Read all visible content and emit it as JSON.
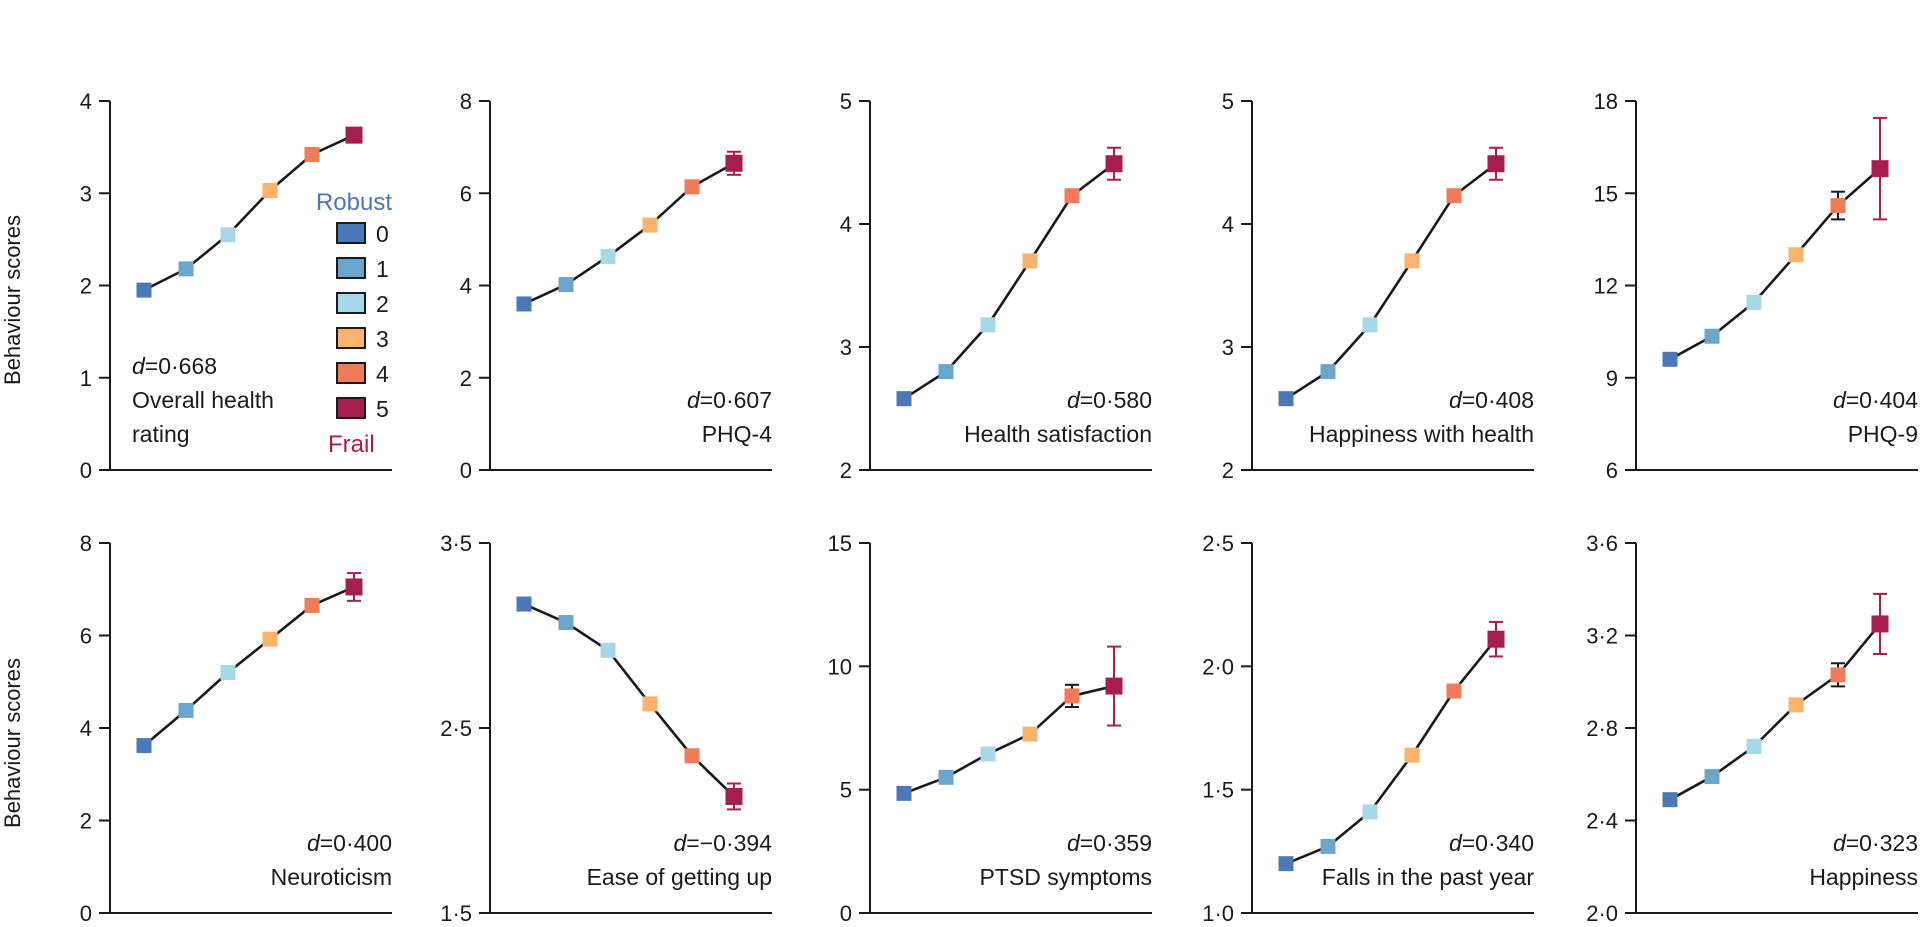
{
  "colors": {
    "levels": [
      "#4a78b8",
      "#6aa5cd",
      "#a7d8ea",
      "#f9b36c",
      "#ef7b58",
      "#a61e4d"
    ],
    "line": "#1a1a1a",
    "robust_label": "#4a78b8",
    "frail_label": "#a61e4d"
  },
  "shared": {
    "ylabel": "Behaviour scores"
  },
  "legend": {
    "title": "Robust",
    "items": [
      "0",
      "1",
      "2",
      "3",
      "4",
      "5"
    ],
    "footer": "Frail"
  },
  "chart_data": [
    {
      "type": "line",
      "title": "Overall health rating",
      "title_lines": [
        "Overall health",
        "rating"
      ],
      "d_label": "=0·668",
      "ylim": [
        0,
        4
      ],
      "yticks": [
        "0",
        "1",
        "2",
        "3",
        "4"
      ],
      "x": [
        0,
        1,
        2,
        3,
        4,
        5
      ],
      "values": [
        1.95,
        2.18,
        2.55,
        3.03,
        3.42,
        3.63
      ],
      "errors": [
        0,
        0,
        0,
        0,
        0,
        0
      ],
      "label_align": "left"
    },
    {
      "type": "line",
      "title": "PHQ-4",
      "title_lines": [
        "PHQ-4"
      ],
      "d_label": "=0·607",
      "ylim": [
        0,
        8
      ],
      "yticks": [
        "0",
        "2",
        "4",
        "6",
        "8"
      ],
      "x": [
        0,
        1,
        2,
        3,
        4,
        5
      ],
      "values": [
        3.6,
        4.02,
        4.63,
        5.31,
        6.14,
        6.65
      ],
      "errors": [
        0,
        0,
        0,
        0,
        0,
        0.25
      ],
      "label_align": "right"
    },
    {
      "type": "line",
      "title": "Health satisfaction",
      "title_lines": [
        "Health satisfaction"
      ],
      "d_label": "=0·580",
      "ylim": [
        2,
        5
      ],
      "yticks": [
        "2",
        "3",
        "4",
        "5"
      ],
      "x": [
        0,
        1,
        2,
        3,
        4,
        5
      ],
      "values": [
        2.58,
        2.8,
        3.18,
        3.7,
        4.23,
        4.49
      ],
      "errors": [
        0,
        0,
        0,
        0,
        0.04,
        0.13
      ],
      "label_align": "right"
    },
    {
      "type": "line",
      "title": "Happiness with health",
      "title_lines": [
        "Happiness with health"
      ],
      "d_label": "=0·408",
      "ylim": [
        2,
        5
      ],
      "yticks": [
        "2",
        "3",
        "4",
        "5"
      ],
      "x": [
        0,
        1,
        2,
        3,
        4,
        5
      ],
      "values": [
        2.58,
        2.8,
        3.18,
        3.7,
        4.23,
        4.49
      ],
      "errors": [
        0,
        0,
        0,
        0,
        0.04,
        0.13
      ],
      "label_align": "right"
    },
    {
      "type": "line",
      "title": "PHQ-9",
      "title_lines": [
        "PHQ-9"
      ],
      "d_label": "=0·404",
      "ylim": [
        6,
        18
      ],
      "yticks": [
        "6",
        "9",
        "12",
        "15",
        "18"
      ],
      "x": [
        0,
        1,
        2,
        3,
        4,
        5
      ],
      "values": [
        9.6,
        10.35,
        11.45,
        13.0,
        14.6,
        15.8
      ],
      "errors": [
        0,
        0,
        0,
        0,
        0.45,
        1.65
      ],
      "label_align": "right"
    },
    {
      "type": "line",
      "title": "Neuroticism",
      "title_lines": [
        "Neuroticism"
      ],
      "d_label": "=0·400",
      "ylim": [
        0,
        8
      ],
      "yticks": [
        "0",
        "2",
        "4",
        "6",
        "8"
      ],
      "x": [
        0,
        1,
        2,
        3,
        4,
        5
      ],
      "values": [
        3.62,
        4.38,
        5.2,
        5.92,
        6.65,
        7.05
      ],
      "errors": [
        0,
        0,
        0,
        0,
        0,
        0.3
      ],
      "label_align": "right"
    },
    {
      "type": "line",
      "title": "Ease of getting up",
      "title_lines": [
        "Ease of getting up"
      ],
      "d_label": "=−0·394",
      "ylim": [
        1.5,
        3.5
      ],
      "yticks": [
        "1·5",
        "2·5",
        "3·5"
      ],
      "x": [
        0,
        1,
        2,
        3,
        4,
        5
      ],
      "values": [
        3.17,
        3.07,
        2.92,
        2.63,
        2.35,
        2.13
      ],
      "errors": [
        0,
        0,
        0,
        0,
        0,
        0.07
      ],
      "label_align": "right"
    },
    {
      "type": "line",
      "title": "PTSD symptoms",
      "title_lines": [
        "PTSD symptoms"
      ],
      "d_label": "=0·359",
      "ylim": [
        0,
        15
      ],
      "yticks": [
        "0",
        "5",
        "10",
        "15"
      ],
      "x": [
        0,
        1,
        2,
        3,
        4,
        5
      ],
      "values": [
        4.85,
        5.5,
        6.45,
        7.25,
        8.8,
        9.2
      ],
      "errors": [
        0,
        0,
        0,
        0,
        0.45,
        1.6
      ],
      "label_align": "right"
    },
    {
      "type": "line",
      "title": "Falls in the past year",
      "title_lines": [
        "Falls in the past year"
      ],
      "d_label": "=0·340",
      "ylim": [
        1.0,
        2.5
      ],
      "yticks": [
        "1·0",
        "1·5",
        "2·0",
        "2·5"
      ],
      "x": [
        0,
        1,
        2,
        3,
        4,
        5
      ],
      "values": [
        1.2,
        1.27,
        1.41,
        1.64,
        1.9,
        2.11
      ],
      "errors": [
        0,
        0,
        0,
        0,
        0,
        0.07
      ],
      "label_align": "right"
    },
    {
      "type": "line",
      "title": "Happiness",
      "title_lines": [
        "Happiness"
      ],
      "d_label": "=0·323",
      "ylim": [
        2.0,
        3.6
      ],
      "yticks": [
        "2·0",
        "2·4",
        "2·8",
        "3·2",
        "3·6"
      ],
      "x": [
        0,
        1,
        2,
        3,
        4,
        5
      ],
      "values": [
        2.49,
        2.59,
        2.72,
        2.9,
        3.03,
        3.25
      ],
      "errors": [
        0,
        0,
        0,
        0,
        0.05,
        0.13
      ],
      "label_align": "right"
    }
  ]
}
